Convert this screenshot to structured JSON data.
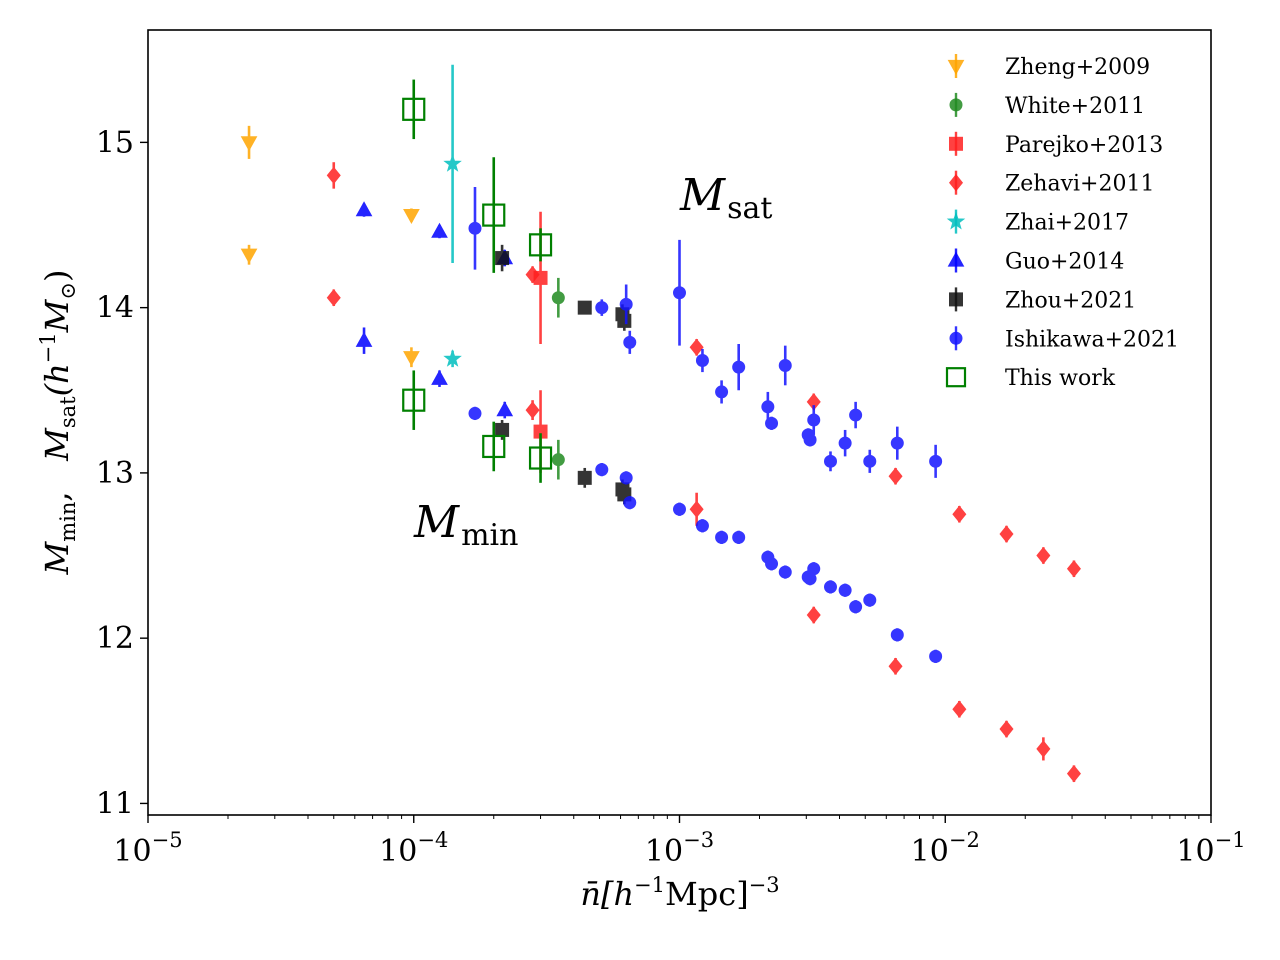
{
  "chart_data": {
    "type": "scatter",
    "x_scale": "log",
    "xlim": [
      1e-05,
      0.1
    ],
    "ylim": [
      10.93,
      15.68
    ],
    "x_ticks": [
      {
        "base": "10",
        "exp": "−5",
        "value": 1e-05
      },
      {
        "base": "10",
        "exp": "−4",
        "value": 0.0001
      },
      {
        "base": "10",
        "exp": "−3",
        "value": 0.001
      },
      {
        "base": "10",
        "exp": "−2",
        "value": 0.01
      },
      {
        "base": "10",
        "exp": "−1",
        "value": 0.1
      }
    ],
    "y_ticks": [
      {
        "label": "11",
        "value": 11
      },
      {
        "label": "12",
        "value": 12
      },
      {
        "label": "13",
        "value": 13
      },
      {
        "label": "14",
        "value": 14
      },
      {
        "label": "15",
        "value": 15
      }
    ],
    "xlabel": {
      "pre": "n̄[h",
      "sup1": "−1",
      "mid": "Mpc]",
      "sup2": "−3"
    },
    "ylabel": {
      "m1": "M",
      "sub1": "min",
      "sep": ",   ",
      "m2": "M",
      "sub2": "sat",
      "paren": "(h",
      "sup": "−1",
      "m3": "M",
      "sub3": "⊙",
      "close": ")"
    },
    "annotations": {
      "msat": {
        "main": "M",
        "sub": "sat"
      },
      "mmin": {
        "main": "M",
        "sub": "min"
      }
    },
    "legend_position": "top-right",
    "series": [
      {
        "name": "Zheng+2009",
        "color": "#ffa500",
        "marker": "triangle-down",
        "filled": true,
        "points": [
          [
            2.4e-05,
            15.0,
            0.1
          ],
          [
            2.4e-05,
            14.32,
            0.06
          ],
          [
            9.8e-05,
            14.56,
            0.04
          ],
          [
            9.8e-05,
            13.7,
            0.06
          ]
        ]
      },
      {
        "name": "White+2011",
        "color": "#228b22",
        "marker": "circle",
        "filled": true,
        "points": [
          [
            0.00035,
            14.06,
            0.12
          ],
          [
            0.00035,
            13.08,
            0.12
          ]
        ]
      },
      {
        "name": "Parejko+2013",
        "color": "#ff2020",
        "marker": "square",
        "filled": true,
        "points": [
          [
            0.0003,
            14.18,
            0.4
          ],
          [
            0.0003,
            13.25,
            0.25
          ]
        ]
      },
      {
        "name": "Zehavi+2011",
        "color": "#ff2020",
        "marker": "diamond",
        "filled": true,
        "points": [
          [
            5e-05,
            14.8,
            0.08
          ],
          [
            5e-05,
            14.06,
            0.05
          ],
          [
            0.00028,
            14.2,
            0.05
          ],
          [
            0.00028,
            13.38,
            0.06
          ],
          [
            0.00116,
            13.76,
            0.05
          ],
          [
            0.00116,
            12.78,
            0.1
          ],
          [
            0.0032,
            13.43,
            0.05
          ],
          [
            0.0032,
            12.14,
            0.05
          ],
          [
            0.0065,
            12.98,
            0.05
          ],
          [
            0.0065,
            11.83,
            0.05
          ],
          [
            0.0113,
            12.75,
            0.05
          ],
          [
            0.0113,
            11.57,
            0.05
          ],
          [
            0.017,
            12.63,
            0.05
          ],
          [
            0.017,
            11.45,
            0.05
          ],
          [
            0.0234,
            12.5,
            0.05
          ],
          [
            0.0234,
            11.33,
            0.07
          ],
          [
            0.0305,
            12.42,
            0.05
          ],
          [
            0.0305,
            11.18,
            0.05
          ]
        ]
      },
      {
        "name": "Zhai+2017",
        "color": "#00bfbf",
        "marker": "star",
        "filled": true,
        "points": [
          [
            0.00014,
            14.87,
            0.6
          ],
          [
            0.00014,
            13.69,
            0.05
          ]
        ]
      },
      {
        "name": "Guo+2014",
        "color": "#0000ff",
        "marker": "triangle-up",
        "filled": true,
        "points": [
          [
            6.5e-05,
            14.59,
            0.04
          ],
          [
            6.5e-05,
            13.8,
            0.08
          ],
          [
            0.000125,
            14.46,
            0.04
          ],
          [
            0.000125,
            13.57,
            0.05
          ],
          [
            0.00022,
            14.3,
            0.05
          ],
          [
            0.00022,
            13.38,
            0.05
          ]
        ]
      },
      {
        "name": "Zhou+2021",
        "color": "#111111",
        "marker": "square",
        "filled": true,
        "points": [
          [
            0.000215,
            14.3,
            0.08
          ],
          [
            0.000215,
            13.26,
            0.06
          ],
          [
            0.00044,
            14.0,
            0.04
          ],
          [
            0.00044,
            12.97,
            0.06
          ],
          [
            0.00061,
            13.96,
            0.06
          ],
          [
            0.00061,
            12.9,
            0.06
          ],
          [
            0.00062,
            13.92,
            0.06
          ],
          [
            0.00062,
            12.87,
            0.06
          ]
        ]
      },
      {
        "name": "Ishikawa+2021",
        "color": "#1414ff",
        "marker": "circle",
        "filled": true,
        "points": [
          [
            0.00017,
            14.48,
            0.25
          ],
          [
            0.00017,
            13.36,
            0.04
          ],
          [
            0.00051,
            14.0,
            0.05
          ],
          [
            0.00051,
            13.02,
            0.04
          ],
          [
            0.00063,
            14.02,
            0.12
          ],
          [
            0.00063,
            12.97,
            0.04
          ],
          [
            0.00065,
            13.79,
            0.07
          ],
          [
            0.00065,
            12.82,
            0.04
          ],
          [
            0.001,
            14.09,
            0.32
          ],
          [
            0.001,
            12.78,
            0.04
          ],
          [
            0.00122,
            13.68,
            0.07
          ],
          [
            0.00122,
            12.68,
            0.04
          ],
          [
            0.00144,
            13.49,
            0.07
          ],
          [
            0.00144,
            12.61,
            0.04
          ],
          [
            0.00167,
            13.64,
            0.14
          ],
          [
            0.00167,
            12.61,
            0.04
          ],
          [
            0.00215,
            13.4,
            0.09
          ],
          [
            0.00215,
            12.49,
            0.04
          ],
          [
            0.00222,
            13.3,
            0.04
          ],
          [
            0.00222,
            12.45,
            0.04
          ],
          [
            0.0025,
            13.65,
            0.12
          ],
          [
            0.0025,
            12.4,
            0.04
          ],
          [
            0.00305,
            13.23,
            0.04
          ],
          [
            0.00305,
            12.37,
            0.04
          ],
          [
            0.0031,
            13.2,
            0.04
          ],
          [
            0.0031,
            12.36,
            0.04
          ],
          [
            0.0032,
            13.32,
            0.09
          ],
          [
            0.0032,
            12.42,
            0.04
          ],
          [
            0.0037,
            13.07,
            0.06
          ],
          [
            0.0037,
            12.31,
            0.04
          ],
          [
            0.0042,
            13.18,
            0.08
          ],
          [
            0.0042,
            12.29,
            0.04
          ],
          [
            0.0046,
            13.35,
            0.08
          ],
          [
            0.0046,
            12.19,
            0.04
          ],
          [
            0.0052,
            13.07,
            0.07
          ],
          [
            0.0052,
            12.23,
            0.04
          ],
          [
            0.0066,
            13.18,
            0.1
          ],
          [
            0.0066,
            12.02,
            0.04
          ],
          [
            0.0092,
            13.07,
            0.1
          ],
          [
            0.0092,
            11.89,
            0.04
          ]
        ]
      },
      {
        "name": "This work",
        "color": "#008000",
        "marker": "square",
        "filled": false,
        "points": [
          [
            0.0001,
            15.2,
            0.18
          ],
          [
            0.0001,
            13.44,
            0.18
          ],
          [
            0.0002,
            14.56,
            0.35
          ],
          [
            0.0002,
            13.16,
            0.15
          ],
          [
            0.0003,
            14.38,
            0.1
          ],
          [
            0.0003,
            13.09,
            0.15
          ]
        ]
      }
    ]
  }
}
